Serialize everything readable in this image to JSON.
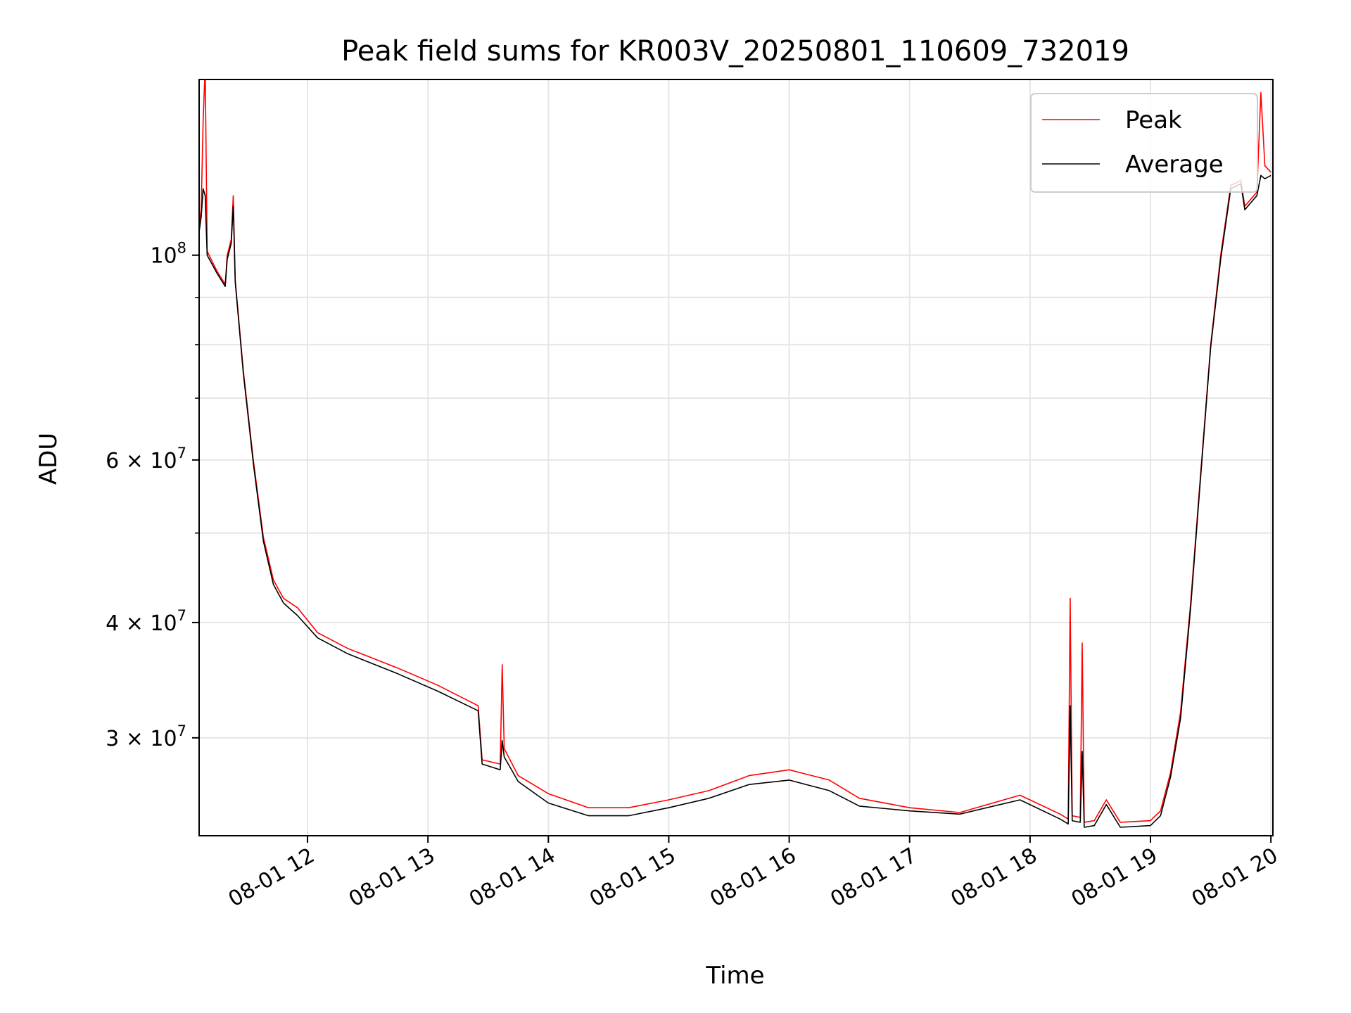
{
  "chart_data": {
    "type": "line",
    "title": "Peak field sums for KR003V_20250801_110609_732019",
    "xlabel": "Time",
    "ylabel": "ADU",
    "yscale": "log",
    "xlim": [
      "2025-08-01 11:06",
      "2025-08-01 20:01"
    ],
    "ylim": [
      23500000,
      155000000
    ],
    "grid": true,
    "legend_position": "top-right",
    "x_ticks": [
      {
        "time": "2025-08-01 12:00",
        "label": "08-01 12"
      },
      {
        "time": "2025-08-01 13:00",
        "label": "08-01 13"
      },
      {
        "time": "2025-08-01 14:00",
        "label": "08-01 14"
      },
      {
        "time": "2025-08-01 15:00",
        "label": "08-01 15"
      },
      {
        "time": "2025-08-01 16:00",
        "label": "08-01 16"
      },
      {
        "time": "2025-08-01 17:00",
        "label": "08-01 17"
      },
      {
        "time": "2025-08-01 18:00",
        "label": "08-01 18"
      },
      {
        "time": "2025-08-01 19:00",
        "label": "08-01 19"
      },
      {
        "time": "2025-08-01 20:00",
        "label": "08-01 20"
      }
    ],
    "y_ticks": [
      {
        "value": 30000000,
        "mantissa": "3",
        "exponent": "7"
      },
      {
        "value": 40000000,
        "mantissa": "4",
        "exponent": "7"
      },
      {
        "value": 60000000,
        "mantissa": "6",
        "exponent": "7"
      },
      {
        "value": 100000000,
        "mantissa": "",
        "exponent": "8"
      }
    ],
    "y_minor_ticks": [
      50000000,
      70000000,
      80000000,
      90000000
    ],
    "series": [
      {
        "name": "Peak",
        "color": "#ff0000",
        "points": [
          [
            "2025-08-01 11:06",
            108000000
          ],
          [
            "2025-08-01 11:07",
            112000000
          ],
          [
            "2025-08-01 11:08",
            140000000
          ],
          [
            "2025-08-01 11:09",
            160000000
          ],
          [
            "2025-08-01 11:10",
            101000000
          ],
          [
            "2025-08-01 11:15",
            96000000
          ],
          [
            "2025-08-01 11:19",
            93000000
          ],
          [
            "2025-08-01 11:20",
            100000000
          ],
          [
            "2025-08-01 11:22",
            104000000
          ],
          [
            "2025-08-01 11:23",
            116000000
          ],
          [
            "2025-08-01 11:24",
            94000000
          ],
          [
            "2025-08-01 11:28",
            75000000
          ],
          [
            "2025-08-01 11:33",
            60000000
          ],
          [
            "2025-08-01 11:38",
            49500000
          ],
          [
            "2025-08-01 11:43",
            44500000
          ],
          [
            "2025-08-01 11:48",
            42500000
          ],
          [
            "2025-08-01 11:55",
            41500000
          ],
          [
            "2025-08-01 12:05",
            39000000
          ],
          [
            "2025-08-01 12:20",
            37500000
          ],
          [
            "2025-08-01 12:45",
            35700000
          ],
          [
            "2025-08-01 13:05",
            34200000
          ],
          [
            "2025-08-01 13:25",
            32500000
          ],
          [
            "2025-08-01 13:27",
            28400000
          ],
          [
            "2025-08-01 13:36",
            28100000
          ],
          [
            "2025-08-01 13:37",
            36000000
          ],
          [
            "2025-08-01 13:38",
            29200000
          ],
          [
            "2025-08-01 13:45",
            27300000
          ],
          [
            "2025-08-01 14:00",
            26100000
          ],
          [
            "2025-08-01 14:20",
            25200000
          ],
          [
            "2025-08-01 14:40",
            25200000
          ],
          [
            "2025-08-01 15:00",
            25700000
          ],
          [
            "2025-08-01 15:20",
            26300000
          ],
          [
            "2025-08-01 15:40",
            27300000
          ],
          [
            "2025-08-01 16:00",
            27700000
          ],
          [
            "2025-08-01 16:20",
            27000000
          ],
          [
            "2025-08-01 16:35",
            25800000
          ],
          [
            "2025-08-01 17:00",
            25200000
          ],
          [
            "2025-08-01 17:25",
            24900000
          ],
          [
            "2025-08-01 17:55",
            26000000
          ],
          [
            "2025-08-01 18:15",
            24800000
          ],
          [
            "2025-08-01 18:19",
            24500000
          ],
          [
            "2025-08-01 18:20",
            42500000
          ],
          [
            "2025-08-01 18:21",
            24700000
          ],
          [
            "2025-08-01 18:25",
            24600000
          ],
          [
            "2025-08-01 18:26",
            38000000
          ],
          [
            "2025-08-01 18:27",
            24300000
          ],
          [
            "2025-08-01 18:32",
            24400000
          ],
          [
            "2025-08-01 18:38",
            25700000
          ],
          [
            "2025-08-01 18:45",
            24300000
          ],
          [
            "2025-08-01 19:00",
            24400000
          ],
          [
            "2025-08-01 19:05",
            25000000
          ],
          [
            "2025-08-01 19:10",
            27500000
          ],
          [
            "2025-08-01 19:15",
            32000000
          ],
          [
            "2025-08-01 19:20",
            42000000
          ],
          [
            "2025-08-01 19:25",
            58000000
          ],
          [
            "2025-08-01 19:30",
            80000000
          ],
          [
            "2025-08-01 19:35",
            100000000
          ],
          [
            "2025-08-01 19:40",
            119000000
          ],
          [
            "2025-08-01 19:45",
            120500000
          ],
          [
            "2025-08-01 19:47",
            113000000
          ],
          [
            "2025-08-01 19:50",
            115000000
          ],
          [
            "2025-08-01 19:53",
            117000000
          ],
          [
            "2025-08-01 19:55",
            150000000
          ],
          [
            "2025-08-01 19:57",
            125000000
          ],
          [
            "2025-08-01 20:00",
            123000000
          ]
        ]
      },
      {
        "name": "Average",
        "color": "#000000",
        "points": [
          [
            "2025-08-01 11:06",
            106000000
          ],
          [
            "2025-08-01 11:07",
            110000000
          ],
          [
            "2025-08-01 11:08",
            118000000
          ],
          [
            "2025-08-01 11:09",
            116000000
          ],
          [
            "2025-08-01 11:10",
            100000000
          ],
          [
            "2025-08-01 11:15",
            95500000
          ],
          [
            "2025-08-01 11:19",
            92500000
          ],
          [
            "2025-08-01 11:20",
            99000000
          ],
          [
            "2025-08-01 11:22",
            103000000
          ],
          [
            "2025-08-01 11:23",
            113000000
          ],
          [
            "2025-08-01 11:24",
            93500000
          ],
          [
            "2025-08-01 11:28",
            74500000
          ],
          [
            "2025-08-01 11:33",
            59500000
          ],
          [
            "2025-08-01 11:38",
            49000000
          ],
          [
            "2025-08-01 11:43",
            44000000
          ],
          [
            "2025-08-01 11:48",
            42000000
          ],
          [
            "2025-08-01 11:55",
            40700000
          ],
          [
            "2025-08-01 12:05",
            38500000
          ],
          [
            "2025-08-01 12:20",
            37000000
          ],
          [
            "2025-08-01 12:45",
            35200000
          ],
          [
            "2025-08-01 13:05",
            33700000
          ],
          [
            "2025-08-01 13:25",
            32100000
          ],
          [
            "2025-08-01 13:27",
            28100000
          ],
          [
            "2025-08-01 13:36",
            27700000
          ],
          [
            "2025-08-01 13:37",
            29800000
          ],
          [
            "2025-08-01 13:38",
            28600000
          ],
          [
            "2025-08-01 13:45",
            26900000
          ],
          [
            "2025-08-01 14:00",
            25500000
          ],
          [
            "2025-08-01 14:20",
            24700000
          ],
          [
            "2025-08-01 14:40",
            24700000
          ],
          [
            "2025-08-01 15:00",
            25200000
          ],
          [
            "2025-08-01 15:20",
            25800000
          ],
          [
            "2025-08-01 15:40",
            26700000
          ],
          [
            "2025-08-01 16:00",
            27000000
          ],
          [
            "2025-08-01 16:20",
            26300000
          ],
          [
            "2025-08-01 16:35",
            25300000
          ],
          [
            "2025-08-01 17:00",
            25000000
          ],
          [
            "2025-08-01 17:25",
            24800000
          ],
          [
            "2025-08-01 17:55",
            25700000
          ],
          [
            "2025-08-01 18:15",
            24500000
          ],
          [
            "2025-08-01 18:19",
            24200000
          ],
          [
            "2025-08-01 18:20",
            32500000
          ],
          [
            "2025-08-01 18:21",
            24400000
          ],
          [
            "2025-08-01 18:25",
            24300000
          ],
          [
            "2025-08-01 18:26",
            29000000
          ],
          [
            "2025-08-01 18:27",
            24000000
          ],
          [
            "2025-08-01 18:32",
            24100000
          ],
          [
            "2025-08-01 18:38",
            25400000
          ],
          [
            "2025-08-01 18:45",
            24000000
          ],
          [
            "2025-08-01 19:00",
            24100000
          ],
          [
            "2025-08-01 19:05",
            24700000
          ],
          [
            "2025-08-01 19:10",
            27200000
          ],
          [
            "2025-08-01 19:15",
            31500000
          ],
          [
            "2025-08-01 19:20",
            41500000
          ],
          [
            "2025-08-01 19:25",
            57500000
          ],
          [
            "2025-08-01 19:30",
            79500000
          ],
          [
            "2025-08-01 19:35",
            99000000
          ],
          [
            "2025-08-01 19:40",
            118000000
          ],
          [
            "2025-08-01 19:45",
            119500000
          ],
          [
            "2025-08-01 19:47",
            112000000
          ],
          [
            "2025-08-01 19:50",
            114000000
          ],
          [
            "2025-08-01 19:53",
            116000000
          ],
          [
            "2025-08-01 19:55",
            122000000
          ],
          [
            "2025-08-01 19:57",
            121000000
          ],
          [
            "2025-08-01 20:00",
            122000000
          ]
        ]
      }
    ]
  }
}
